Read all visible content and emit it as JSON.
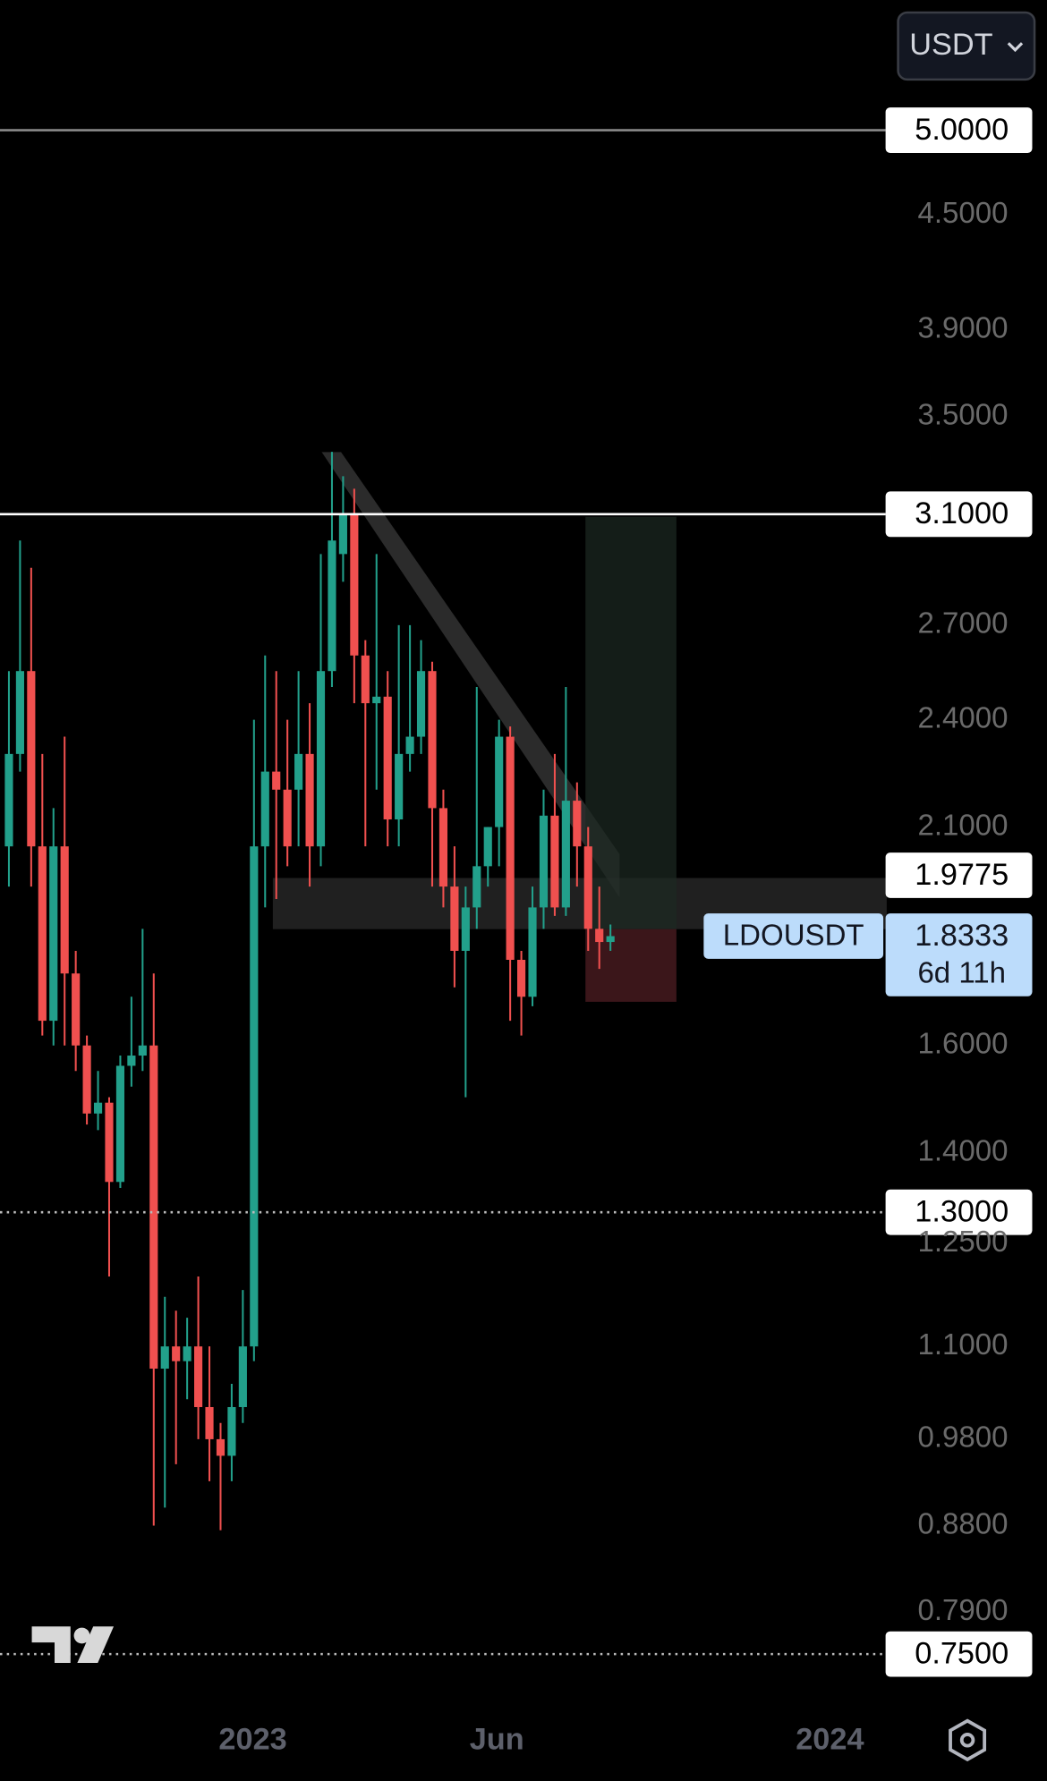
{
  "toolbar": {
    "currency": "USDT"
  },
  "chart_data": {
    "type": "candlestick",
    "log_scale": true,
    "up_color": "#22a08b",
    "down_color": "#f0504f",
    "xlim": [
      -0.8,
      78.8
    ],
    "ylim": [
      0.705,
      5.88
    ],
    "xticks": [
      {
        "value": 21.9,
        "label": "2023"
      },
      {
        "value": 43.8,
        "label": "Jun"
      },
      {
        "value": 73.7,
        "label": "2024"
      }
    ],
    "yticks": [
      {
        "value": 4.5,
        "label": "4.5000"
      },
      {
        "value": 3.9,
        "label": "3.9000"
      },
      {
        "value": 3.5,
        "label": "3.5000"
      },
      {
        "value": 2.7,
        "label": "2.7000"
      },
      {
        "value": 2.4,
        "label": "2.4000"
      },
      {
        "value": 2.1,
        "label": "2.1000"
      },
      {
        "value": 1.6,
        "label": "1.6000"
      },
      {
        "value": 1.4,
        "label": "1.4000"
      },
      {
        "value": 1.25,
        "label": "1.2500"
      },
      {
        "value": 1.1,
        "label": "1.1000"
      },
      {
        "value": 0.98,
        "label": "0.9800"
      },
      {
        "value": 0.88,
        "label": "0.8800"
      },
      {
        "value": 0.79,
        "label": "0.7900"
      }
    ],
    "levels": [
      {
        "value": 5,
        "label": "5.0000",
        "style": "solid",
        "color": "#8a8a8a"
      },
      {
        "value": 3.1,
        "label": "3.1000",
        "style": "solid",
        "color": "#ffffff"
      },
      {
        "value": 1.9775,
        "label": "1.9775",
        "style": "none",
        "color": "#ffffff"
      },
      {
        "value": 1.3,
        "label": "1.3000",
        "style": "dotted",
        "color": "#bbbbbb"
      },
      {
        "value": 0.75,
        "label": "0.7500",
        "style": "dotted",
        "color": "#bbbbbb"
      }
    ],
    "last_price": {
      "symbol": "LDOUSDT",
      "value": 1.8333,
      "countdown": "6d 11h",
      "color": "#bcdcfb"
    },
    "x": [
      0,
      1,
      2,
      3,
      4,
      5,
      6,
      7,
      8,
      9,
      10,
      11,
      12,
      13,
      14,
      15,
      16,
      17,
      18,
      19,
      20,
      21,
      22,
      23,
      24,
      25,
      26,
      27,
      28,
      29,
      30,
      31,
      32,
      33,
      34,
      35,
      36,
      37,
      38,
      39,
      40,
      41,
      42,
      43,
      44,
      45,
      46,
      47,
      48,
      49,
      50,
      51,
      52,
      53,
      54
    ],
    "open": [
      2.05,
      2.3,
      2.55,
      2.05,
      1.65,
      2.05,
      1.75,
      1.6,
      1.47,
      1.49,
      1.35,
      1.56,
      1.58,
      1.6,
      1.07,
      1.1,
      1.08,
      1.1,
      1.02,
      0.98,
      0.96,
      1.02,
      1.1,
      2.05,
      2.25,
      2.2,
      2.2,
      2.3,
      2.05,
      2.55,
      2.95,
      3.1,
      2.6,
      2.45,
      2.47,
      2.12,
      2.3,
      2.35,
      2.55,
      2.15,
      1.95,
      1.8,
      1.9,
      2.0,
      2.1,
      2.35,
      1.78,
      1.7,
      1.9,
      2.13,
      1.9,
      2.17,
      2.05,
      1.85,
      1.82
    ],
    "high": [
      2.55,
      3.0,
      2.9,
      2.3,
      2.15,
      2.35,
      1.8,
      1.62,
      1.55,
      1.5,
      1.58,
      1.7,
      1.85,
      1.75,
      1.17,
      1.15,
      1.14,
      1.2,
      1.1,
      1.0,
      1.05,
      1.18,
      2.4,
      2.6,
      2.55,
      2.4,
      2.55,
      2.45,
      2.95,
      3.35,
      3.25,
      3.2,
      2.65,
      2.95,
      2.55,
      2.7,
      2.7,
      2.65,
      2.58,
      2.2,
      2.05,
      1.95,
      2.5,
      2.1,
      2.4,
      2.38,
      1.8,
      1.95,
      2.2,
      2.3,
      2.5,
      2.22,
      2.1,
      1.95,
      1.86
    ],
    "low": [
      1.95,
      2.25,
      1.95,
      1.62,
      1.6,
      1.6,
      1.55,
      1.45,
      1.44,
      1.2,
      1.34,
      1.52,
      1.55,
      0.88,
      0.9,
      0.95,
      1.03,
      0.98,
      0.93,
      0.875,
      0.93,
      1.0,
      1.08,
      1.9,
      1.92,
      2.0,
      2.05,
      1.95,
      2.0,
      2.5,
      2.85,
      2.45,
      2.05,
      2.2,
      2.05,
      2.05,
      2.25,
      2.3,
      1.95,
      1.9,
      1.72,
      1.5,
      1.85,
      1.95,
      2.0,
      1.65,
      1.62,
      1.68,
      1.85,
      1.88,
      1.88,
      1.95,
      1.8,
      1.76,
      1.8
    ],
    "close": [
      2.3,
      2.55,
      2.05,
      1.65,
      2.05,
      1.75,
      1.6,
      1.47,
      1.49,
      1.35,
      1.56,
      1.58,
      1.6,
      1.07,
      1.1,
      1.08,
      1.1,
      1.02,
      0.98,
      0.96,
      1.02,
      1.1,
      2.05,
      2.25,
      2.2,
      2.05,
      2.3,
      2.05,
      2.55,
      3.0,
      3.1,
      2.6,
      2.45,
      2.47,
      2.12,
      2.3,
      2.35,
      2.55,
      2.15,
      1.95,
      1.8,
      1.9,
      2.0,
      2.1,
      2.35,
      1.78,
      1.7,
      1.9,
      2.13,
      1.9,
      2.17,
      2.05,
      1.85,
      1.82,
      1.8333
    ]
  }
}
